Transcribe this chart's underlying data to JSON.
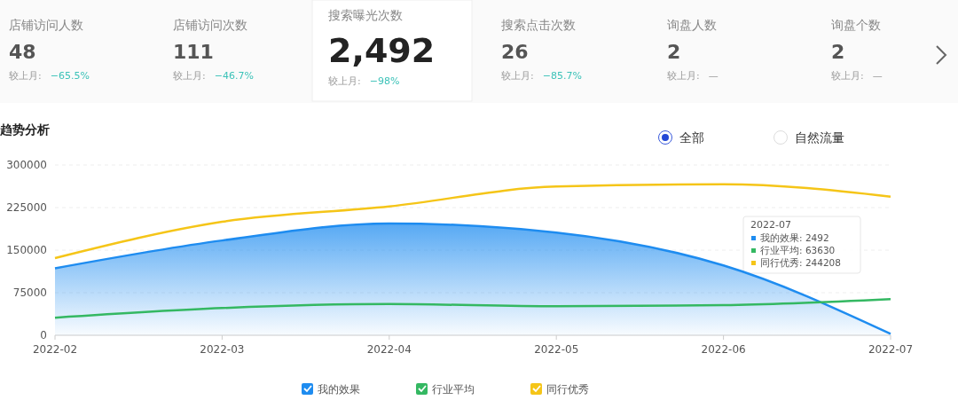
{
  "chart_data": [
    {
      "type": "other",
      "categories": [
        "店铺访问人数",
        "店铺访问次数",
        "搜索曝光次数",
        "搜索点击次数",
        "询盘人数",
        "询盘个数"
      ],
      "value_labels": [
        "48",
        "111",
        "2,492",
        "26",
        "2",
        "2"
      ],
      "annotations": [
        "较上月:  −65.5%",
        "较上月:  −46.7%",
        "较上月:  −98%",
        "较上月:  −85.7%",
        "较上月:  —",
        "较上月:  —"
      ]
    },
    {
      "type": "line",
      "title": "趋势分析",
      "categories": [
        "2022-02",
        "2022-03",
        "2022-04",
        "2022-05",
        "2022-06",
        "2022-07"
      ],
      "series": [
        {
          "name": "我的效果",
          "type": "area",
          "color": "#1e8cf0",
          "values": [
            118000,
            167000,
            197000,
            181000,
            123000,
            2492
          ]
        },
        {
          "name": "行业平均",
          "color": "#34b862",
          "values": [
            31000,
            48000,
            55000,
            51000,
            53000,
            63630
          ]
        },
        {
          "name": "同行优秀",
          "color": "#f5c518",
          "values": [
            136000,
            200000,
            227000,
            262000,
            266000,
            244208
          ]
        }
      ],
      "ylim": [
        0,
        300000
      ],
      "yticks": [
        0,
        75000,
        150000,
        225000,
        300000
      ],
      "grid": "y",
      "legend": "bottom",
      "annotations": [
        "全部",
        "自然流量",
        "2022-07",
        "我的效果: 2492",
        "行业平均: 63630",
        "同行优秀: 244208"
      ]
    }
  ]
}
